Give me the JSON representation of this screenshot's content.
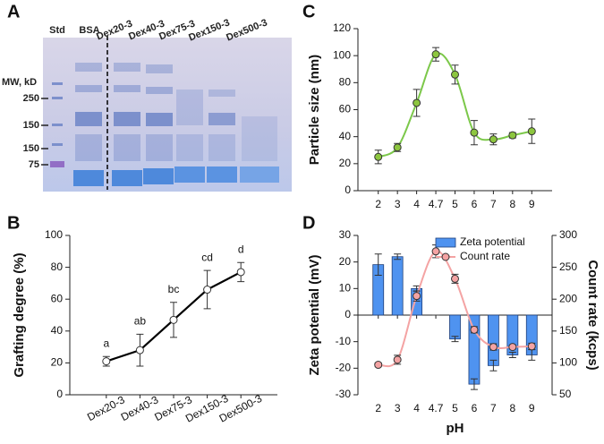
{
  "gel": {
    "letter": "A",
    "lanes": [
      "Std",
      "BSA",
      "Dex20-3",
      "Dex40-3",
      "Dex75-3",
      "Dex150-3",
      "Dex500-3"
    ],
    "mw_title": "MW, kD",
    "mw_labels": [
      "250",
      "150",
      "150",
      "75"
    ]
  },
  "chart_data": [
    {
      "type": "line",
      "letter": "B",
      "ylabel": "Grafting degree (%)",
      "categories": [
        "Dex20-3",
        "Dex40-3",
        "Dex75-3",
        "Dex150-3",
        "Dex500-3"
      ],
      "values": [
        21,
        28,
        47,
        66,
        77
      ],
      "errors": [
        3,
        10,
        11,
        12,
        6
      ],
      "annotations": [
        "a",
        "ab",
        "bc",
        "cd",
        "d"
      ],
      "color": "#000000",
      "marker_fill": "#ffffff",
      "ylim": [
        0,
        100
      ],
      "yticks": [
        0,
        20,
        40,
        60,
        80,
        100
      ]
    },
    {
      "type": "line",
      "letter": "C",
      "ylabel": "Particle size (nm)",
      "smooth": true,
      "categories": [
        "2",
        "3",
        "4",
        "4.7",
        "5",
        "6",
        "7",
        "8",
        "9"
      ],
      "values": [
        25,
        32,
        65,
        101,
        86,
        43,
        38,
        41,
        44
      ],
      "errors": [
        5,
        3,
        10,
        5,
        7,
        9,
        4,
        2,
        9
      ],
      "color": "#7cc84a",
      "marker_fill": "#8dc63f",
      "ylim": [
        0,
        120
      ],
      "yticks": [
        0,
        20,
        40,
        60,
        80,
        100,
        120
      ]
    },
    {
      "type": "combo",
      "letter": "D",
      "xlabel": "pH",
      "ylabel": "Zeta potential (mV)",
      "y2label": "Count rate (kcps)",
      "categories": [
        "2",
        "3",
        "4",
        "4.7",
        "5",
        "6",
        "7",
        "8",
        "9"
      ],
      "series": [
        {
          "name": "Zeta potential",
          "kind": "bar",
          "color": "#4f93f0",
          "values": [
            19,
            22,
            10,
            0,
            -9,
            -26,
            -19,
            -15,
            -15
          ],
          "errors": [
            4,
            1,
            1,
            0,
            1,
            2,
            2,
            1,
            2
          ]
        },
        {
          "name": "Count rate",
          "kind": "line",
          "axis": "y2",
          "smooth": true,
          "color": "#f4a3a3",
          "values": [
            97,
            105,
            205,
            275,
            232,
            152,
            125,
            125,
            126
          ],
          "errors": [
            3,
            7,
            8,
            10,
            7,
            5,
            5,
            3,
            5
          ]
        }
      ],
      "ylim": [
        -30,
        30
      ],
      "yticks": [
        -30,
        -20,
        -10,
        0,
        10,
        20,
        30
      ],
      "y2lim": [
        50,
        300
      ],
      "y2ticks": [
        50,
        100,
        150,
        200,
        250,
        300
      ],
      "legend": "top-right"
    }
  ]
}
